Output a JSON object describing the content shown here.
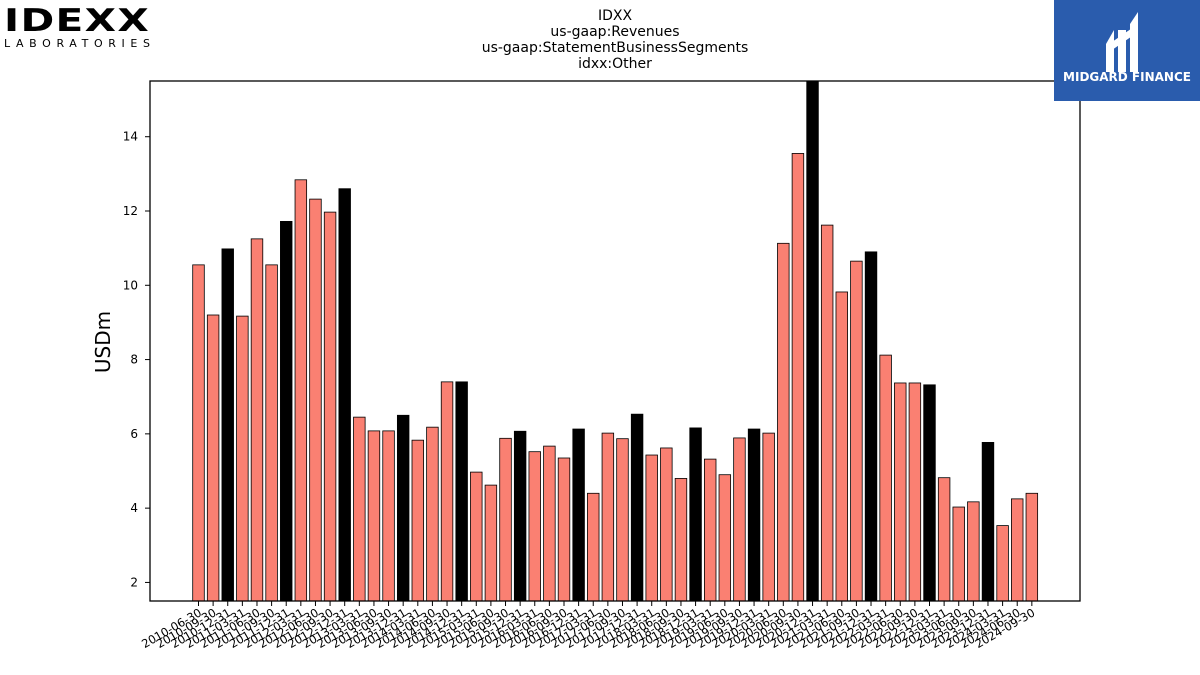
{
  "logo_left": {
    "name": "IDEXX",
    "subtitle": "LABORATORIES"
  },
  "logo_right": {
    "name": "MIDGARD FINANCE"
  },
  "chart_data": {
    "type": "bar",
    "title_lines": [
      "IDXX",
      "us-gaap:Revenues",
      "us-gaap:StatementBusinessSegments",
      "idxx:Other"
    ],
    "xlabel": "",
    "ylabel": "USDm",
    "ylim": [
      1.5,
      15.5
    ],
    "yticks": [
      2,
      4,
      6,
      8,
      10,
      12,
      14
    ],
    "grid": false,
    "colors": {
      "quarter": "#fa8072",
      "year_end": "#000000",
      "edge": "#000000"
    },
    "categories": [
      "2010-06-30",
      "2010-09-30",
      "2010-12-31",
      "2011-03-31",
      "2011-06-30",
      "2011-09-30",
      "2011-12-31",
      "2012-03-31",
      "2012-06-30",
      "2012-09-30",
      "2012-12-31",
      "2013-03-31",
      "2013-06-30",
      "2013-09-30",
      "2013-12-31",
      "2014-03-31",
      "2014-06-30",
      "2014-09-30",
      "2014-12-31",
      "2015-03-31",
      "2015-06-30",
      "2015-09-30",
      "2015-12-31",
      "2016-03-31",
      "2016-06-30",
      "2016-09-30",
      "2016-12-31",
      "2017-03-31",
      "2017-06-30",
      "2017-09-30",
      "2017-12-31",
      "2018-03-31",
      "2018-06-30",
      "2018-09-30",
      "2018-12-31",
      "2019-03-31",
      "2019-06-30",
      "2019-09-30",
      "2019-12-31",
      "2020-03-31",
      "2020-06-30",
      "2020-09-30",
      "2020-12-31",
      "2021-03-31",
      "2021-06-30",
      "2021-09-30",
      "2021-12-31",
      "2022-03-31",
      "2022-06-30",
      "2022-09-30",
      "2022-12-31",
      "2023-03-31",
      "2023-06-30",
      "2023-09-30",
      "2023-12-31",
      "2024-03-31",
      "2024-06-30",
      "2024-09-30"
    ],
    "values": [
      10.55,
      9.2,
      10.98,
      9.17,
      11.25,
      10.55,
      11.72,
      12.84,
      12.32,
      11.97,
      12.6,
      6.45,
      6.08,
      6.08,
      6.5,
      5.83,
      6.18,
      7.4,
      7.4,
      4.97,
      4.62,
      5.88,
      6.07,
      5.52,
      5.67,
      5.35,
      6.13,
      4.4,
      6.02,
      5.87,
      6.53,
      5.43,
      5.62,
      4.8,
      6.16,
      5.32,
      4.9,
      5.89,
      6.13,
      6.02,
      11.13,
      13.55,
      15.5,
      11.62,
      9.82,
      10.65,
      10.9,
      8.12,
      7.37,
      7.37,
      7.32,
      4.82,
      4.03,
      4.17,
      5.77,
      3.53,
      4.25,
      4.4
    ]
  }
}
